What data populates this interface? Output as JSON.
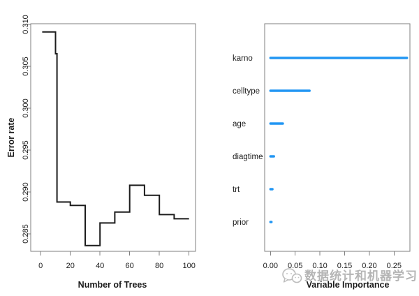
{
  "figure": {
    "background": "#ffffff",
    "watermark": {
      "icon": "chat-bubbles-icon",
      "text": "数据统计和机器学习",
      "color": "#b5b5b5"
    }
  },
  "chart_data": [
    {
      "id": "error-rate-plot",
      "type": "line",
      "line_style": "step-after",
      "title": "",
      "xlabel": "Number of Trees",
      "ylabel": "Error rate",
      "xlim": [
        -6.7,
        104.4
      ],
      "ylim": [
        0.28292,
        0.31008
      ],
      "xticks": [
        0,
        20,
        40,
        60,
        80,
        100
      ],
      "xtick_labels": [
        "0",
        "20",
        "40",
        "60",
        "80",
        "100"
      ],
      "yticks": [
        0.285,
        0.29,
        0.295,
        0.3,
        0.305,
        0.31
      ],
      "ytick_labels": [
        "0.285",
        "0.290",
        "0.295",
        "0.300",
        "0.305",
        "0.310"
      ],
      "grid": false,
      "line_color": "#1c1c1c",
      "axis_color": "#7f7f7f",
      "text_color": "#1a1a1a",
      "step_points": [
        [
          1,
          0.3091
        ],
        [
          10,
          0.3065
        ],
        [
          11,
          0.2888
        ],
        [
          20,
          0.2884
        ],
        [
          30,
          0.2836
        ],
        [
          40,
          0.2863
        ],
        [
          50,
          0.2876
        ],
        [
          60,
          0.2908
        ],
        [
          70,
          0.2896
        ],
        [
          80,
          0.2873
        ],
        [
          90,
          0.2868
        ],
        [
          100,
          0.2868
        ]
      ]
    },
    {
      "id": "variable-importance-plot",
      "type": "bar",
      "orientation": "horizontal",
      "title": "",
      "xlabel": "Variable Importance",
      "categories": [
        "karno",
        "celltype",
        "age",
        "diagtime",
        "trt",
        "prior"
      ],
      "values": [
        0.276,
        0.079,
        0.025,
        0.007,
        0.004,
        0.002
      ],
      "xlim": [
        -0.0117,
        0.282
      ],
      "xticks": [
        0.0,
        0.05,
        0.1,
        0.15,
        0.2,
        0.25
      ],
      "xtick_labels": [
        "0.00",
        "0.05",
        "0.10",
        "0.15",
        "0.20",
        "0.25"
      ],
      "grid": false,
      "bar_color": "#2196f3",
      "axis_color": "#7f7f7f",
      "text_color": "#1a1a1a",
      "legend": null
    }
  ]
}
